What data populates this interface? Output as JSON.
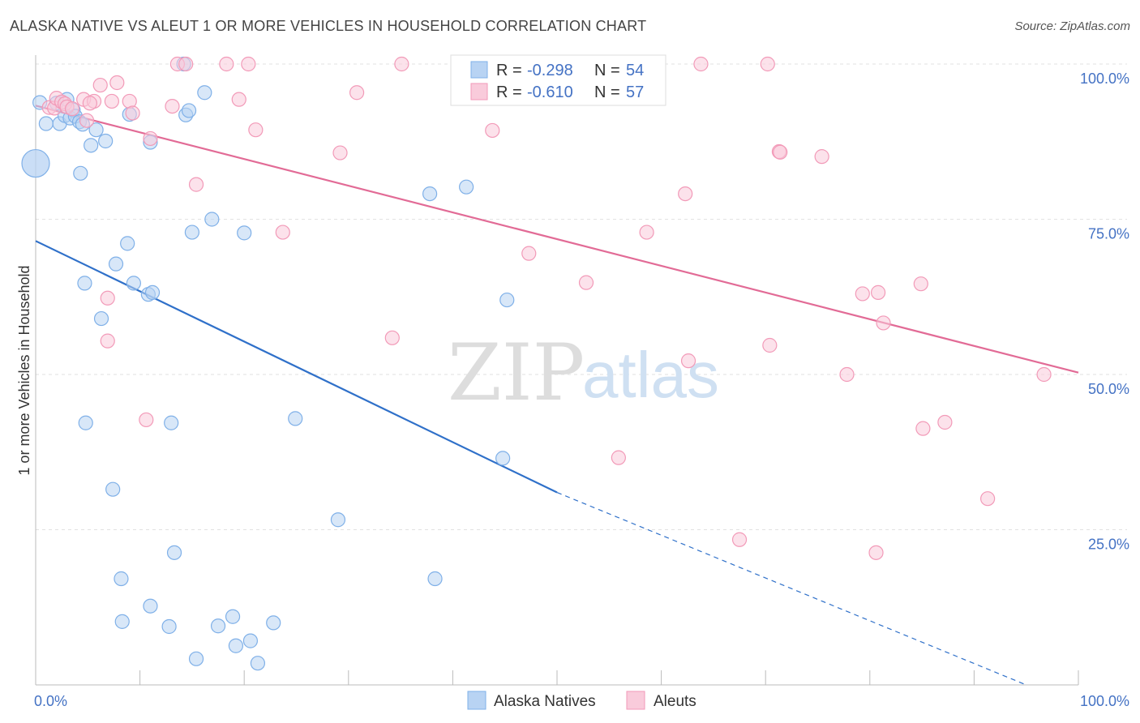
{
  "title": "ALASKA NATIVE VS ALEUT 1 OR MORE VEHICLES IN HOUSEHOLD CORRELATION CHART",
  "source": "Source: ZipAtlas.com",
  "chart_data": {
    "type": "scatter",
    "title": "ALASKA NATIVE VS ALEUT 1 OR MORE VEHICLES IN HOUSEHOLD CORRELATION CHART",
    "ylabel": "1 or more Vehicles in Household",
    "xlabel": "",
    "xlim": [
      0,
      100
    ],
    "ylim": [
      0,
      100
    ],
    "x_ticks": [
      "0.0%",
      "100.0%"
    ],
    "y_ticks": [
      {
        "value": 100,
        "label": "100.0%"
      },
      {
        "value": 75,
        "label": "75.0%"
      },
      {
        "value": 50,
        "label": "50.0%"
      },
      {
        "value": 25,
        "label": "25.0%"
      }
    ],
    "grid": true,
    "legend_placement": "top-center",
    "watermark": {
      "zip": "ZIP",
      "atlas": "atlas"
    },
    "legend": [
      {
        "r_label": "R = ",
        "r_value": "-0.298",
        "n_label": "N = ",
        "n_value": "54"
      },
      {
        "r_label": "R = ",
        "r_value": "-0.610",
        "n_label": "N = ",
        "n_value": "57"
      }
    ],
    "series": [
      {
        "name": "Alaska Natives",
        "color": "#7fb0e8",
        "fill": "#b8d3f3",
        "line_color": "#2f70c9",
        "trend": {
          "x0": 0,
          "y0": 71.5,
          "x1": 50,
          "y1": 31.0,
          "x_dash_end": 95,
          "y_dash_end": -3
        },
        "points": [
          [
            0.4,
            93.8
          ],
          [
            1.0,
            90.4
          ],
          [
            2.0,
            93.7
          ],
          [
            2.3,
            90.4
          ],
          [
            2.8,
            91.7
          ],
          [
            3.0,
            94.3
          ],
          [
            3.3,
            91.3
          ],
          [
            3.6,
            92.6
          ],
          [
            3.8,
            91.6
          ],
          [
            4.2,
            90.7
          ],
          [
            4.5,
            90.3
          ],
          [
            4.3,
            82.4
          ],
          [
            5.3,
            86.9
          ],
          [
            5.8,
            89.4
          ],
          [
            6.7,
            87.6
          ],
          [
            4.7,
            64.7
          ],
          [
            6.3,
            59.0
          ],
          [
            7.7,
            67.8
          ],
          [
            8.8,
            71.1
          ],
          [
            9.4,
            64.7
          ],
          [
            10.8,
            62.9
          ],
          [
            11.2,
            63.2
          ],
          [
            11.0,
            87.4
          ],
          [
            14.4,
            91.8
          ],
          [
            14.7,
            92.5
          ],
          [
            14.2,
            100.0
          ],
          [
            16.2,
            95.4
          ],
          [
            15.0,
            72.9
          ],
          [
            16.9,
            75.0
          ],
          [
            20.0,
            72.8
          ],
          [
            9.0,
            91.9
          ],
          [
            4.8,
            42.2
          ],
          [
            13.0,
            42.2
          ],
          [
            24.9,
            42.9
          ],
          [
            7.4,
            31.5
          ],
          [
            13.3,
            21.3
          ],
          [
            8.2,
            17.1
          ],
          [
            11.0,
            12.7
          ],
          [
            8.3,
            10.2
          ],
          [
            12.8,
            9.4
          ],
          [
            17.5,
            9.5
          ],
          [
            18.9,
            11.0
          ],
          [
            19.2,
            6.3
          ],
          [
            20.6,
            7.1
          ],
          [
            21.3,
            3.5
          ],
          [
            22.8,
            10.0
          ],
          [
            15.4,
            4.2
          ],
          [
            29.0,
            26.6
          ],
          [
            38.3,
            17.1
          ],
          [
            37.8,
            79.1
          ],
          [
            41.3,
            80.2
          ],
          [
            44.8,
            36.5
          ],
          [
            45.2,
            62.0
          ],
          [
            46.2,
            100.0
          ]
        ]
      },
      {
        "name": "Aleuts",
        "color": "#f29ab8",
        "fill": "#f9cbdb",
        "line_color": "#e26b96",
        "trend": {
          "x0": 0,
          "y0": 93.3,
          "x1": 100,
          "y1": 50.3
        },
        "points": [
          [
            1.3,
            93.0
          ],
          [
            1.8,
            92.9
          ],
          [
            2.0,
            94.5
          ],
          [
            2.5,
            93.9
          ],
          [
            2.8,
            93.6
          ],
          [
            3.0,
            93.1
          ],
          [
            3.5,
            92.8
          ],
          [
            4.6,
            94.3
          ],
          [
            4.9,
            90.9
          ],
          [
            5.6,
            94.0
          ],
          [
            6.2,
            96.6
          ],
          [
            7.3,
            94.0
          ],
          [
            7.8,
            97.0
          ],
          [
            9.0,
            94.0
          ],
          [
            9.3,
            92.1
          ],
          [
            11.0,
            88.0
          ],
          [
            13.1,
            93.2
          ],
          [
            13.6,
            100.0
          ],
          [
            14.4,
            100.0
          ],
          [
            15.4,
            80.6
          ],
          [
            18.3,
            100.0
          ],
          [
            19.5,
            94.3
          ],
          [
            20.4,
            100.0
          ],
          [
            21.1,
            89.4
          ],
          [
            23.7,
            72.9
          ],
          [
            6.9,
            55.4
          ],
          [
            6.9,
            62.3
          ],
          [
            10.6,
            42.7
          ],
          [
            29.2,
            85.7
          ],
          [
            30.8,
            95.4
          ],
          [
            34.2,
            55.9
          ],
          [
            35.1,
            100.0
          ],
          [
            43.8,
            89.3
          ],
          [
            47.3,
            69.5
          ],
          [
            52.8,
            64.8
          ],
          [
            55.9,
            36.6
          ],
          [
            58.6,
            72.9
          ],
          [
            62.3,
            79.1
          ],
          [
            62.6,
            52.2
          ],
          [
            67.5,
            23.4
          ],
          [
            70.2,
            100.0
          ],
          [
            70.4,
            54.7
          ],
          [
            71.3,
            85.9
          ],
          [
            71.4,
            85.8
          ],
          [
            75.4,
            85.1
          ],
          [
            77.8,
            50.0
          ],
          [
            79.3,
            63.0
          ],
          [
            80.6,
            21.3
          ],
          [
            80.8,
            63.2
          ],
          [
            81.3,
            58.3
          ],
          [
            84.9,
            64.6
          ],
          [
            85.1,
            41.3
          ],
          [
            87.2,
            42.3
          ],
          [
            91.3,
            30.0
          ],
          [
            96.7,
            50.0
          ],
          [
            63.8,
            100.0
          ],
          [
            5.2,
            93.7
          ]
        ]
      }
    ],
    "large_points": [
      {
        "series": "Alaska Natives",
        "x": 0.0,
        "y": 84.0
      }
    ]
  }
}
